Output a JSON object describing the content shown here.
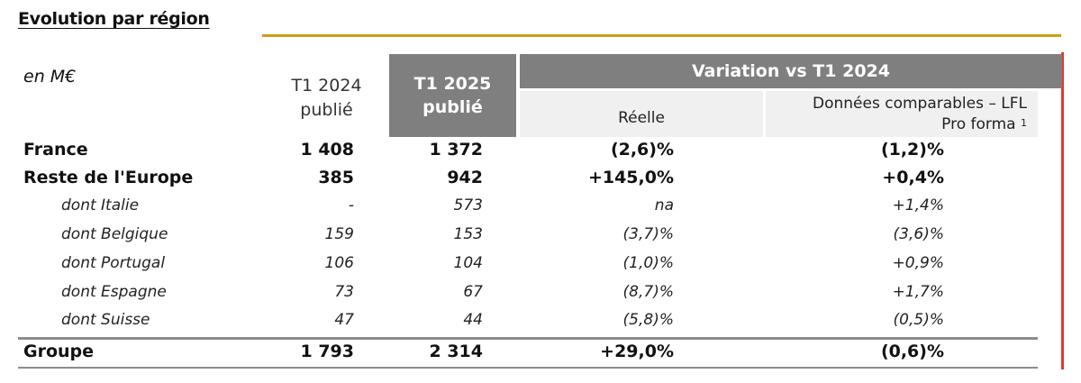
{
  "title": "Evolution par région",
  "unit_label": "en M€",
  "headers": {
    "col_2024": [
      "T1 2024",
      "publié"
    ],
    "col_2025": [
      "T1 2025",
      "publié"
    ],
    "variation": "Variation vs T1 2024",
    "reelle": "Réelle",
    "lfl_line1": "Données comparables – LFL",
    "lfl_line2": "Pro forma",
    "lfl_note": "1"
  },
  "rows": [
    {
      "name": "France",
      "t1_2024": "1 408",
      "t1_2025": "1 372",
      "reelle": "(2,6)%",
      "lfl": "(1,2)%",
      "style": "bold"
    },
    {
      "name": "Reste de l'Europe",
      "t1_2024": "385",
      "t1_2025": "942",
      "reelle": "+145,0%",
      "lfl": "+0,4%",
      "style": "bold"
    },
    {
      "name": "dont Italie",
      "t1_2024": "-",
      "t1_2025": "573",
      "reelle": "na",
      "lfl": "+1,4%",
      "style": "sub"
    },
    {
      "name": "dont Belgique",
      "t1_2024": "159",
      "t1_2025": "153",
      "reelle": "(3,7)%",
      "lfl": "(3,6)%",
      "style": "sub"
    },
    {
      "name": "dont Portugal",
      "t1_2024": "106",
      "t1_2025": "104",
      "reelle": "(1,0)%",
      "lfl": "+0,9%",
      "style": "sub"
    },
    {
      "name": "dont Espagne",
      "t1_2024": "73",
      "t1_2025": "67",
      "reelle": "(8,7)%",
      "lfl": "+1,7%",
      "style": "sub"
    },
    {
      "name": "dont Suisse",
      "t1_2024": "47",
      "t1_2025": "44",
      "reelle": "(5,8)%",
      "lfl": "(0,5)%",
      "style": "sub"
    },
    {
      "name": "Groupe",
      "t1_2024": "1 793",
      "t1_2025": "2 314",
      "reelle": "+29,0%",
      "lfl": "(0,6)%",
      "style": "bold"
    }
  ],
  "colors": {
    "accent_gold": "#d39b1b",
    "header_gray": "#7f7f7f",
    "accent_red": "#e03a32"
  }
}
